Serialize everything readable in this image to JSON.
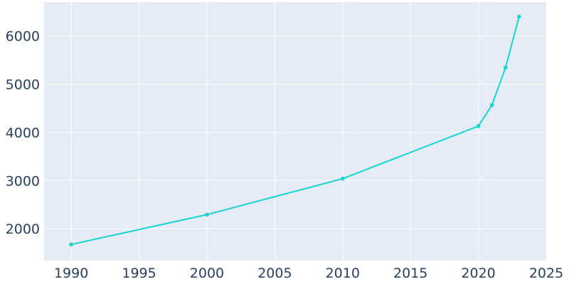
{
  "chart_data": {
    "type": "line",
    "x": [
      1990,
      2000,
      2010,
      2020,
      2021,
      2022,
      2023
    ],
    "series": [
      {
        "values": [
          1674,
          2293,
          3038,
          4129,
          4565,
          5340,
          6400
        ],
        "color": "#17d4d0"
      }
    ],
    "xlim": [
      1988,
      2025
    ],
    "ylim": [
      1340,
      6700
    ],
    "xticks": [
      1990,
      1995,
      2000,
      2005,
      2010,
      2015,
      2020,
      2025
    ],
    "yticks": [
      2000,
      3000,
      4000,
      5000,
      6000
    ],
    "grid": true,
    "plot_background": "#e5ecf6",
    "title": "",
    "xlabel": "",
    "ylabel": ""
  }
}
